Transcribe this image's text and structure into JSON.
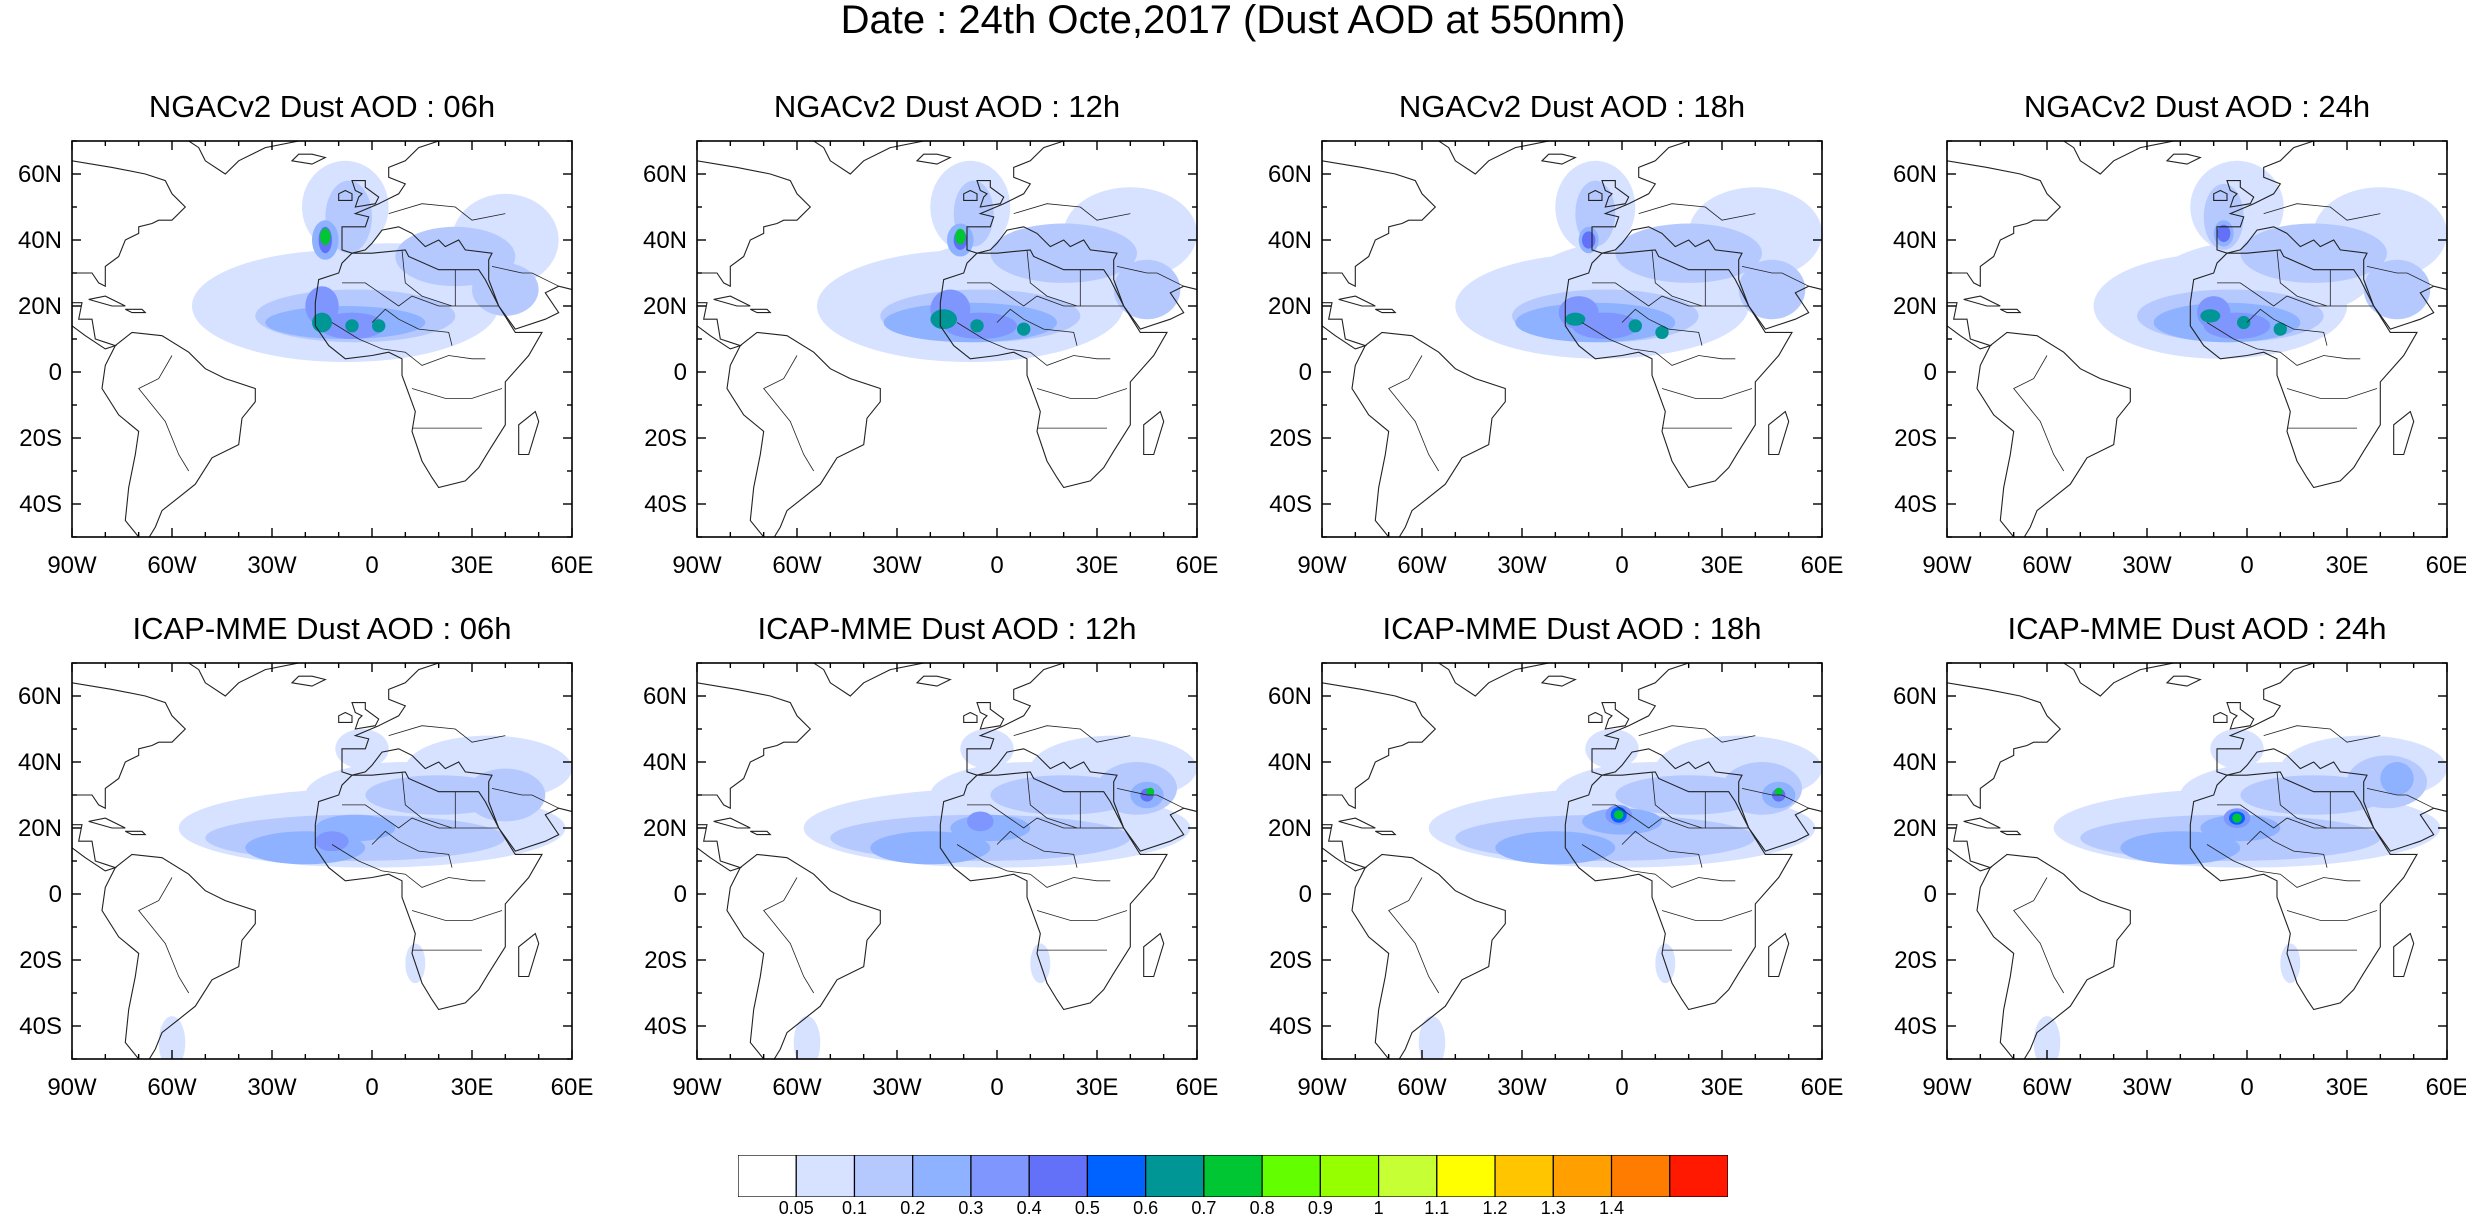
{
  "figure_title": "Date : 24th Octe,2017 (Dust AOD at 550nm)",
  "rows": [
    {
      "model": "NGACv2",
      "panels": [
        {
          "title": "NGACv2 Dust AOD : 06h",
          "dust_max_aod": 0.8
        },
        {
          "title": "NGACv2 Dust AOD : 12h",
          "dust_max_aod": 0.8
        },
        {
          "title": "NGACv2 Dust AOD : 18h",
          "dust_max_aod": 0.7
        },
        {
          "title": "NGACv2 Dust AOD : 24h",
          "dust_max_aod": 0.7
        }
      ]
    },
    {
      "model": "ICAP-MME",
      "panels": [
        {
          "title": "ICAP-MME Dust AOD : 06h",
          "dust_max_aod": 0.5
        },
        {
          "title": "ICAP-MME Dust AOD : 12h",
          "dust_max_aod": 0.8
        },
        {
          "title": "ICAP-MME Dust AOD : 18h",
          "dust_max_aod": 0.8
        },
        {
          "title": "ICAP-MME Dust AOD : 24h",
          "dust_max_aod": 0.8
        }
      ]
    }
  ],
  "map_extent": {
    "lon_min": -90,
    "lon_max": 60,
    "lat_min": -50,
    "lat_max": 70
  },
  "lon_ticks": [
    {
      "value": -90,
      "label": "90W"
    },
    {
      "value": -60,
      "label": "60W"
    },
    {
      "value": -30,
      "label": "30W"
    },
    {
      "value": 0,
      "label": "0"
    },
    {
      "value": 30,
      "label": "30E"
    },
    {
      "value": 60,
      "label": "60E"
    }
  ],
  "lat_ticks": [
    {
      "value": 60,
      "label": "60N"
    },
    {
      "value": 40,
      "label": "40N"
    },
    {
      "value": 20,
      "label": "20N"
    },
    {
      "value": 0,
      "label": "0"
    },
    {
      "value": -20,
      "label": "20S"
    },
    {
      "value": -40,
      "label": "40S"
    }
  ],
  "colorbar": {
    "colors": [
      "#ffffff",
      "#d6e2ff",
      "#b5c9ff",
      "#8eb2ff",
      "#7f96ff",
      "#6370f8",
      "#0063ff",
      "#009696",
      "#00c633",
      "#63ff00",
      "#96ff00",
      "#c6ff33",
      "#ffff00",
      "#ffc600",
      "#ffa000",
      "#ff7c00",
      "#ff1900"
    ],
    "levels": [
      "0.05",
      "0.1",
      "0.2",
      "0.3",
      "0.4",
      "0.5",
      "0.6",
      "0.7",
      "0.8",
      "0.9",
      "1",
      "1.1",
      "1.2",
      "1.3",
      "1.4"
    ]
  }
}
